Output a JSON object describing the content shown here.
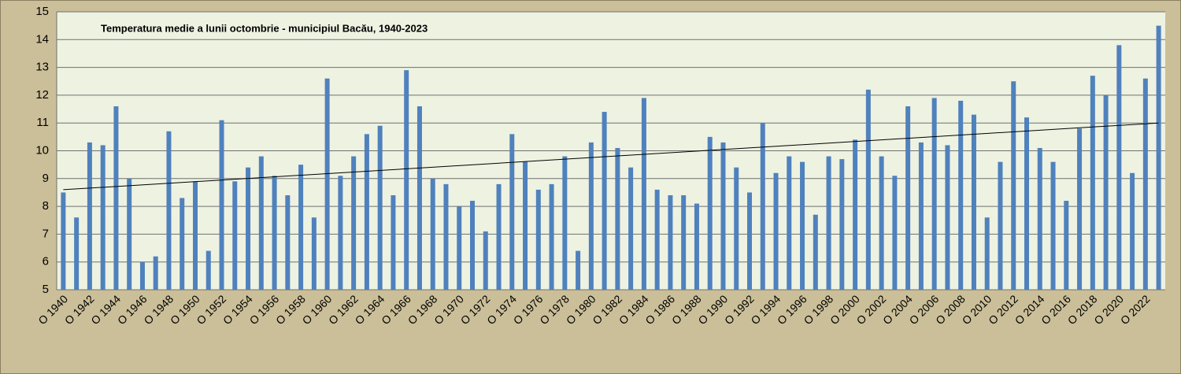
{
  "chart_data": {
    "type": "bar",
    "title": "Temperatura medie a lunii octombrie - municipiul Bacău,  1940-2023",
    "categories": [
      "O 1940",
      null,
      "O 1942",
      null,
      "O 1944",
      null,
      "O 1946",
      null,
      "O 1948",
      null,
      "O 1950",
      null,
      "O 1952",
      null,
      "O 1954",
      null,
      "O 1956",
      null,
      "O 1958",
      null,
      "O 1960",
      null,
      "O 1962",
      null,
      "O 1964",
      null,
      "O 1966",
      null,
      "O 1968",
      null,
      "O 1970",
      null,
      "O 1972",
      null,
      "O 1974",
      null,
      "O 1976",
      null,
      "O 1978",
      null,
      "O 1980",
      null,
      "O 1982",
      null,
      "O 1984",
      null,
      "O 1986",
      null,
      "O 1988",
      null,
      "O 1990",
      null,
      "O 1992",
      null,
      "O 1994",
      null,
      "O 1996",
      null,
      "O 1998",
      null,
      "O 2000",
      null,
      "O 2002",
      null,
      "O 2004",
      null,
      "O 2006",
      null,
      "O 2008",
      null,
      "O 2010",
      null,
      "O 2012",
      null,
      "O 2014",
      null,
      "O 2016",
      null,
      "O 2018",
      null,
      "O 2020",
      null,
      "O 2022",
      null
    ],
    "values": [
      8.5,
      7.6,
      10.3,
      10.2,
      11.6,
      9.0,
      6.0,
      6.2,
      10.7,
      8.3,
      8.9,
      6.4,
      11.1,
      8.9,
      9.4,
      9.8,
      9.1,
      8.4,
      9.5,
      7.6,
      12.6,
      9.1,
      9.8,
      10.6,
      10.9,
      8.4,
      12.9,
      11.6,
      9.0,
      8.8,
      8.0,
      8.2,
      7.1,
      8.8,
      10.6,
      9.6,
      8.6,
      8.8,
      9.8,
      6.4,
      10.3,
      11.4,
      10.1,
      9.4,
      11.9,
      8.6,
      8.4,
      8.4,
      8.1,
      10.5,
      10.3,
      9.4,
      8.5,
      11.0,
      9.2,
      9.8,
      9.6,
      7.7,
      9.8,
      9.7,
      10.4,
      12.2,
      9.8,
      9.1,
      11.6,
      10.3,
      11.9,
      10.2,
      11.8,
      11.3,
      7.6,
      9.6,
      12.5,
      11.2,
      10.1,
      9.6,
      8.2,
      10.8,
      12.7,
      12.0,
      13.8,
      9.2,
      12.6,
      14.5
    ],
    "color": "#4f81bd",
    "trendline": [
      8.6,
      11.0
    ],
    "ylim": [
      5,
      15
    ],
    "yticks": [
      5,
      6,
      7,
      8,
      9,
      10,
      11,
      12,
      13,
      14,
      15
    ],
    "grid": true
  }
}
